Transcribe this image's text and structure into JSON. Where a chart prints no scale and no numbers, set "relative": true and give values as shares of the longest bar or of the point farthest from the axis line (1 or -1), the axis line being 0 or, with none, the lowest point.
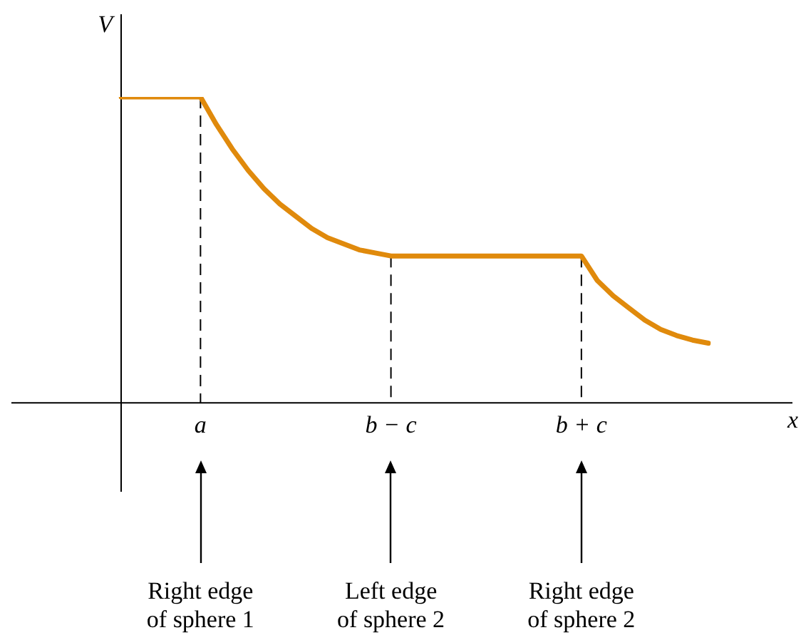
{
  "chart_data": {
    "type": "line",
    "relative": true,
    "ylabel": "V",
    "xlabel": "x",
    "categories": [
      null,
      null,
      null,
      null,
      null,
      "a",
      null,
      null,
      null,
      null,
      null,
      null,
      null,
      null,
      null,
      null,
      null,
      "b − c",
      null,
      null,
      null,
      null,
      null,
      null,
      null,
      null,
      null,
      null,
      null,
      "b + c",
      null,
      null,
      null,
      null,
      null,
      null,
      null,
      null
    ],
    "series": [
      {
        "color": "#e08a0c",
        "values": [
          1,
          1,
          1,
          1,
          1,
          1,
          0.91,
          0.83,
          0.76,
          0.7,
          0.65,
          0.61,
          0.57,
          0.54,
          0.52,
          0.5,
          0.49,
          0.48,
          0.48,
          0.48,
          0.48,
          0.48,
          0.48,
          0.48,
          0.48,
          0.48,
          0.48,
          0.48,
          0.48,
          0.48,
          0.4,
          0.35,
          0.31,
          0.27,
          0.24,
          0.22,
          0.205,
          0.195
        ]
      }
    ],
    "ref_lines": [
      {
        "axis": "x",
        "value": "a",
        "color": "#000000",
        "line_style": "dashed"
      },
      {
        "axis": "x",
        "value": "b − c",
        "color": "#000000",
        "line_style": "dashed"
      },
      {
        "axis": "x",
        "value": "b + c",
        "color": "#000000",
        "line_style": "dashed"
      }
    ],
    "annotations": [
      "Right edge\nof sphere 1",
      "Left edge\nof sphere 2",
      "Right edge\nof sphere 2"
    ],
    "marker": "none",
    "line_style": "solid",
    "grid": false,
    "legend": false
  }
}
